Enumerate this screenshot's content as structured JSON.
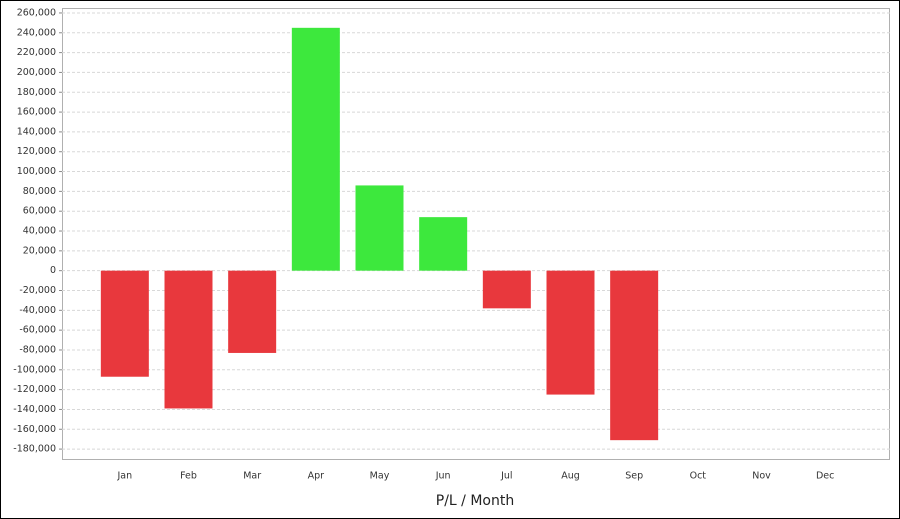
{
  "chart_data": {
    "type": "bar",
    "x_label": "P/L / Month",
    "categories": [
      "Jan",
      "Feb",
      "Mar",
      "Apr",
      "May",
      "Jun",
      "Jul",
      "Aug",
      "Sep",
      "Oct",
      "Nov",
      "Dec"
    ],
    "values": [
      -107000,
      -139000,
      -83000,
      245000,
      86000,
      54000,
      -38000,
      -125000,
      -171000,
      null,
      null,
      null
    ],
    "positive_color": "#3de83d",
    "negative_color": "#e8383d",
    "ylim": [
      -190000,
      265000
    ],
    "yticks": [
      {
        "value": 260000,
        "label": "260,000"
      },
      {
        "value": 240000,
        "label": "240,000"
      },
      {
        "value": 220000,
        "label": "220,000"
      },
      {
        "value": 200000,
        "label": "200,000"
      },
      {
        "value": 180000,
        "label": "180,000"
      },
      {
        "value": 160000,
        "label": "160,000"
      },
      {
        "value": 140000,
        "label": "140,000"
      },
      {
        "value": 120000,
        "label": "120,000"
      },
      {
        "value": 100000,
        "label": "100,000"
      },
      {
        "value": 80000,
        "label": "80,000"
      },
      {
        "value": 60000,
        "label": "60,000"
      },
      {
        "value": 40000,
        "label": "40,000"
      },
      {
        "value": 20000,
        "label": "20,000"
      },
      0,
      {
        "value": -20000,
        "label": "-20,000"
      },
      {
        "value": -40000,
        "label": "-40,000"
      },
      {
        "value": -60000,
        "label": "-60,000"
      },
      {
        "value": -80000,
        "label": "-80,000"
      },
      {
        "value": -100000,
        "label": "-100,000"
      },
      {
        "value": -120000,
        "label": "-120,000"
      },
      {
        "value": -140000,
        "label": "-140,000"
      },
      {
        "value": -160000,
        "label": "-160,000"
      },
      {
        "value": -180000,
        "label": "-180,000"
      }
    ],
    "grid": true
  }
}
